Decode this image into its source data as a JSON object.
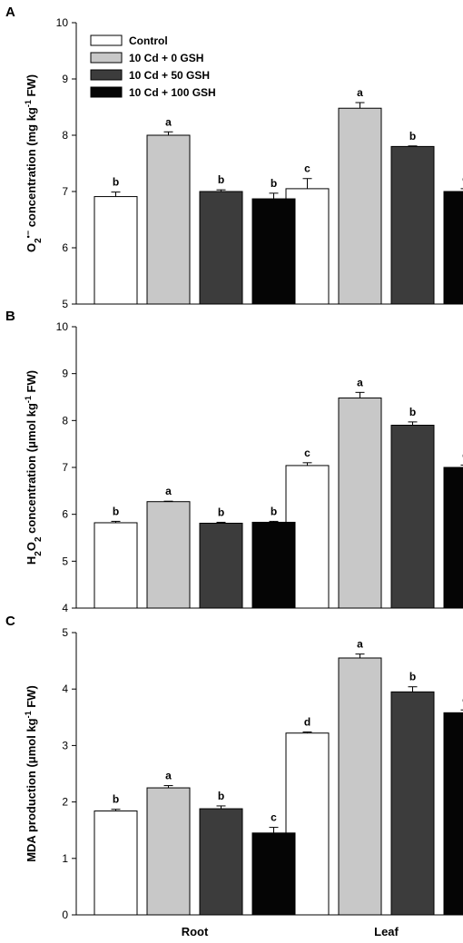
{
  "chart_data": [
    {
      "type": "bar",
      "panel": "A",
      "categories": [
        "Root",
        "Leaf"
      ],
      "ylabel": {
        "pre": "O",
        "sub1": "2",
        "sup1": "•−",
        "post": " concentration (mg kg",
        "sup2": "-1",
        "post2": " FW)"
      },
      "ylim": [
        5,
        10
      ],
      "yticks": [
        "5",
        "6",
        "7",
        "8",
        "9",
        "10"
      ],
      "series": [
        {
          "name": "Control",
          "values": [
            6.91,
            7.05
          ],
          "errors": [
            0.08,
            0.18
          ],
          "letters": [
            "b",
            "c"
          ]
        },
        {
          "name": "10 Cd + 0 GSH",
          "values": [
            8.0,
            8.48
          ],
          "errors": [
            0.06,
            0.1
          ],
          "letters": [
            "a",
            "a"
          ]
        },
        {
          "name": "10 Cd + 50 GSH",
          "values": [
            7.0,
            7.8
          ],
          "errors": [
            0.03,
            0.01
          ],
          "letters": [
            "b",
            "b"
          ]
        },
        {
          "name": "10 Cd + 100 GSH",
          "values": [
            6.87,
            7.0
          ],
          "errors": [
            0.1,
            0.05
          ],
          "letters": [
            "b",
            "c"
          ]
        }
      ],
      "legend": {
        "position": "top-left"
      }
    },
    {
      "type": "bar",
      "panel": "B",
      "categories": [
        "Root",
        "Leaf"
      ],
      "ylabel": {
        "pre": "H",
        "sub1": "2",
        "mid": "O",
        "sub2": "2",
        "post": " concentration (μmol kg",
        "sup2": "-1",
        "post2": " FW)"
      },
      "ylim": [
        4,
        10
      ],
      "yticks": [
        "4",
        "5",
        "6",
        "7",
        "8",
        "9",
        "10"
      ],
      "series": [
        {
          "name": "Control",
          "values": [
            5.82,
            7.04
          ],
          "errors": [
            0.03,
            0.06
          ],
          "letters": [
            "b",
            "c"
          ]
        },
        {
          "name": "10 Cd + 0 GSH",
          "values": [
            6.27,
            8.48
          ],
          "errors": [
            0.01,
            0.12
          ],
          "letters": [
            "a",
            "a"
          ]
        },
        {
          "name": "10 Cd + 50 GSH",
          "values": [
            5.81,
            7.9
          ],
          "errors": [
            0.02,
            0.07
          ],
          "letters": [
            "b",
            "b"
          ]
        },
        {
          "name": "10 Cd + 100 GSH",
          "values": [
            5.83,
            7.0
          ],
          "errors": [
            0.02,
            0.05
          ],
          "letters": [
            "b",
            "c"
          ]
        }
      ]
    },
    {
      "type": "bar",
      "panel": "C",
      "categories": [
        "Root",
        "Leaf"
      ],
      "ylabel": {
        "pre": "MDA production (μmol kg",
        "sup2": "-1",
        "post2": " FW)"
      },
      "ylim": [
        0,
        5
      ],
      "yticks": [
        "0",
        "1",
        "2",
        "3",
        "4",
        "5"
      ],
      "series": [
        {
          "name": "Control",
          "values": [
            1.84,
            3.22
          ],
          "errors": [
            0.03,
            0.02
          ],
          "letters": [
            "b",
            "d"
          ]
        },
        {
          "name": "10 Cd + 0 GSH",
          "values": [
            2.25,
            4.55
          ],
          "errors": [
            0.04,
            0.07
          ],
          "letters": [
            "a",
            "a"
          ]
        },
        {
          "name": "10 Cd + 50 GSH",
          "values": [
            1.88,
            3.95
          ],
          "errors": [
            0.05,
            0.09
          ],
          "letters": [
            "b",
            "b"
          ]
        },
        {
          "name": "10 Cd + 100 GSH",
          "values": [
            1.45,
            3.58
          ],
          "errors": [
            0.1,
            0.05
          ],
          "letters": [
            "c",
            "c"
          ]
        }
      ]
    }
  ],
  "colors": {
    "series": [
      "#ffffff",
      "#c8c8c8",
      "#3c3c3c",
      "#050505"
    ],
    "axis": "#000000"
  },
  "grid": false
}
